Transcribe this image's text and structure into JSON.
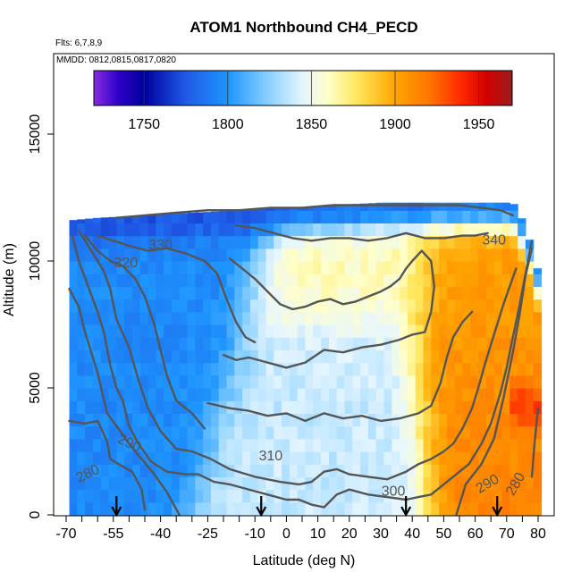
{
  "header": {
    "title": "ATOM1 Northbound CH4_PECD",
    "flights": "Flts: 6,7,8,9",
    "dates": "MMDD: 0812,0815,0817,0820"
  },
  "chart_data": {
    "type": "heatmap",
    "title": "ATOM1 Northbound CH4_PECD",
    "xlabel": "Latitude (deg N)",
    "ylabel": "Altitude (m)",
    "xlim": [
      -70,
      80
    ],
    "ylim": [
      0,
      17500
    ],
    "x_ticks": [
      -70,
      -55,
      -40,
      -25,
      -10,
      0,
      10,
      20,
      30,
      40,
      50,
      60,
      70,
      80
    ],
    "x_tick_labels": [
      "-70",
      "-55",
      "-40",
      "-25",
      "-10",
      "0",
      "10",
      "20",
      "30",
      "40",
      "50",
      "60",
      "70",
      "80"
    ],
    "y_ticks": [
      0,
      5000,
      10000,
      15000
    ],
    "y_tick_labels": [
      "0",
      "5000",
      "10000",
      "15000"
    ],
    "colorbar": {
      "range": [
        1720,
        1970
      ],
      "ticks": [
        1750,
        1800,
        1850,
        1900,
        1950
      ],
      "tick_labels": [
        "1750",
        "1800",
        "1850",
        "1900",
        "1950"
      ],
      "stops": [
        {
          "v": 1720,
          "c": "#8a2be2"
        },
        {
          "v": 1735,
          "c": "#2b00c8"
        },
        {
          "v": 1750,
          "c": "#00009c"
        },
        {
          "v": 1775,
          "c": "#1f5ae6"
        },
        {
          "v": 1800,
          "c": "#1e96ff"
        },
        {
          "v": 1825,
          "c": "#8cd2ff"
        },
        {
          "v": 1845,
          "c": "#e6f6ff"
        },
        {
          "v": 1860,
          "c": "#ffffc8"
        },
        {
          "v": 1878,
          "c": "#ffe65a"
        },
        {
          "v": 1900,
          "c": "#ffa500"
        },
        {
          "v": 1920,
          "c": "#ff7800"
        },
        {
          "v": 1940,
          "c": "#ff2800"
        },
        {
          "v": 1955,
          "c": "#d20000"
        },
        {
          "v": 1970,
          "c": "#9b1e1e"
        }
      ]
    },
    "field_model": {
      "description": "Approximate CH4 (ppb) field by latitude and altitude",
      "south_level": 1795,
      "north_surface_level": 1915,
      "north_upper_level": 1900,
      "tropical_mid_level": 1838,
      "tropical_upper_level": 1862,
      "top_level": 1770
    },
    "coverage": [
      {
        "lat": -69,
        "top": 11600
      },
      {
        "lat": -60,
        "top": 11700
      },
      {
        "lat": -45,
        "top": 11800
      },
      {
        "lat": -30,
        "top": 11900
      },
      {
        "lat": -15,
        "top": 12000
      },
      {
        "lat": 0,
        "top": 12100
      },
      {
        "lat": 15,
        "top": 12200
      },
      {
        "lat": 30,
        "top": 12300
      },
      {
        "lat": 45,
        "top": 12300
      },
      {
        "lat": 60,
        "top": 12300
      },
      {
        "lat": 72,
        "top": 12300
      },
      {
        "lat": 76,
        "top": 11400
      },
      {
        "lat": 80,
        "top": 9600
      }
    ],
    "contours": [
      {
        "level": 280,
        "label": "280",
        "points": [
          [
            -69,
            3700
          ],
          [
            -64,
            3600
          ],
          [
            -60,
            3700
          ],
          [
            -57,
            2900
          ],
          [
            -56,
            2200
          ],
          [
            -52,
            1900
          ],
          [
            -49,
            1700
          ],
          [
            -46,
            1000
          ],
          [
            -45,
            200
          ]
        ]
      },
      {
        "level": 280,
        "label": "",
        "points": [
          [
            78,
            1500
          ],
          [
            79,
            3000
          ],
          [
            80,
            4200
          ]
        ]
      },
      {
        "level": 290,
        "label": "290",
        "points": [
          [
            -69,
            8900
          ],
          [
            -66,
            8200
          ],
          [
            -64,
            7200
          ],
          [
            -62,
            6400
          ],
          [
            -60,
            5600
          ],
          [
            -57,
            4000
          ],
          [
            -54,
            3500
          ],
          [
            -50,
            2800
          ],
          [
            -46,
            2200
          ],
          [
            -42,
            1600
          ],
          [
            -38,
            900
          ],
          [
            -34,
            0
          ]
        ]
      },
      {
        "level": 290,
        "label": "",
        "points": [
          [
            54,
            0
          ],
          [
            57,
            1200
          ],
          [
            62,
            2000
          ],
          [
            66,
            3000
          ],
          [
            69,
            4600
          ],
          [
            72,
            6400
          ],
          [
            74,
            7800
          ],
          [
            76,
            9400
          ],
          [
            78,
            10500
          ]
        ]
      },
      {
        "level": 300,
        "label": "300",
        "points": [
          [
            -68,
            11000
          ],
          [
            -66,
            10000
          ],
          [
            -63,
            9000
          ],
          [
            -60,
            8000
          ],
          [
            -58,
            7200
          ],
          [
            -56,
            5900
          ],
          [
            -54,
            5000
          ],
          [
            -52,
            4500
          ],
          [
            -50,
            3500
          ],
          [
            -47,
            2800
          ],
          [
            -43,
            2100
          ],
          [
            -38,
            1700
          ],
          [
            -32,
            1600
          ],
          [
            -28,
            1600
          ],
          [
            -23,
            1300
          ],
          [
            -18,
            1200
          ],
          [
            -12,
            1000
          ],
          [
            -6,
            800
          ],
          [
            0,
            600
          ],
          [
            4,
            600
          ],
          [
            8,
            400
          ],
          [
            12,
            300
          ],
          [
            16,
            800
          ],
          [
            20,
            1000
          ],
          [
            26,
            800
          ],
          [
            32,
            700
          ],
          [
            38,
            600
          ],
          [
            42,
            700
          ],
          [
            46,
            800
          ],
          [
            50,
            1200
          ],
          [
            54,
            1600
          ],
          [
            58,
            2000
          ],
          [
            62,
            2800
          ],
          [
            65,
            3600
          ],
          [
            68,
            4800
          ],
          [
            70,
            5800
          ],
          [
            72,
            7000
          ],
          [
            74,
            8200
          ],
          [
            76,
            9500
          ],
          [
            78,
            10800
          ]
        ]
      },
      {
        "level": 310,
        "label": "310",
        "points": [
          [
            -66,
            11200
          ],
          [
            -62,
            10400
          ],
          [
            -58,
            9600
          ],
          [
            -56,
            8900
          ],
          [
            -54,
            7700
          ],
          [
            -50,
            6600
          ],
          [
            -47,
            5300
          ],
          [
            -44,
            4200
          ],
          [
            -40,
            3300
          ],
          [
            -35,
            2600
          ],
          [
            -30,
            2500
          ],
          [
            -24,
            2200
          ],
          [
            -18,
            1800
          ],
          [
            -10,
            1500
          ],
          [
            -2,
            1300
          ],
          [
            4,
            1200
          ],
          [
            8,
            1300
          ],
          [
            12,
            1700
          ],
          [
            16,
            1800
          ],
          [
            20,
            1600
          ],
          [
            26,
            1500
          ],
          [
            32,
            1400
          ],
          [
            38,
            1700
          ],
          [
            42,
            2000
          ],
          [
            46,
            2200
          ],
          [
            50,
            2500
          ],
          [
            53,
            2800
          ],
          [
            56,
            3400
          ],
          [
            59,
            4200
          ],
          [
            61,
            5000
          ],
          [
            63,
            5900
          ],
          [
            65,
            6700
          ],
          [
            67,
            7500
          ],
          [
            69,
            8300
          ],
          [
            71,
            9000
          ],
          [
            73,
            9700
          ]
        ]
      },
      {
        "level": 310,
        "label": "",
        "points": [
          [
            -25,
            4400
          ],
          [
            -18,
            4200
          ],
          [
            -12,
            4100
          ],
          [
            -6,
            3900
          ],
          [
            0,
            4000
          ],
          [
            6,
            3700
          ],
          [
            12,
            4000
          ],
          [
            18,
            3800
          ],
          [
            24,
            3900
          ],
          [
            30,
            3700
          ],
          [
            36,
            3800
          ],
          [
            42,
            4000
          ],
          [
            46,
            4300
          ],
          [
            49,
            5200
          ],
          [
            51,
            6200
          ],
          [
            53,
            7000
          ],
          [
            56,
            7600
          ],
          [
            59,
            8000
          ]
        ]
      },
      {
        "level": 320,
        "label": "320",
        "points": [
          [
            -64,
            11000
          ],
          [
            -60,
            10400
          ],
          [
            -56,
            10000
          ],
          [
            -52,
            9800
          ],
          [
            -48,
            9300
          ],
          [
            -45,
            8600
          ],
          [
            -42,
            7500
          ],
          [
            -40,
            6500
          ],
          [
            -38,
            5500
          ],
          [
            -35,
            4500
          ],
          [
            -30,
            4000
          ],
          [
            -26,
            3400
          ]
        ]
      },
      {
        "level": 320,
        "label": "",
        "points": [
          [
            -20,
            6300
          ],
          [
            -16,
            6100
          ],
          [
            -12,
            6200
          ],
          [
            -6,
            6000
          ],
          [
            0,
            5800
          ],
          [
            6,
            6000
          ],
          [
            12,
            6500
          ],
          [
            18,
            6400
          ],
          [
            24,
            6600
          ],
          [
            30,
            6700
          ],
          [
            36,
            6900
          ],
          [
            40,
            7100
          ],
          [
            44,
            7200
          ],
          [
            46,
            8000
          ],
          [
            47,
            9000
          ],
          [
            46,
            10000
          ],
          [
            43,
            10400
          ],
          [
            40,
            10000
          ],
          [
            38,
            9700
          ],
          [
            36,
            9300
          ],
          [
            33,
            9000
          ],
          [
            30,
            8800
          ],
          [
            26,
            8600
          ],
          [
            22,
            8400
          ],
          [
            18,
            8300
          ],
          [
            14,
            8500
          ],
          [
            10,
            8400
          ],
          [
            6,
            8200
          ],
          [
            2,
            8100
          ],
          [
            -2,
            8300
          ],
          [
            -6,
            8800
          ],
          [
            -10,
            9300
          ],
          [
            -14,
            9700
          ],
          [
            -18,
            10100
          ]
        ]
      },
      {
        "level": 330,
        "label": "330",
        "points": [
          [
            -60,
            11000
          ],
          [
            -55,
            10800
          ],
          [
            -50,
            10600
          ],
          [
            -44,
            10400
          ],
          [
            -38,
            10500
          ],
          [
            -32,
            10300
          ],
          [
            -26,
            10000
          ],
          [
            -22,
            9500
          ],
          [
            -19,
            8500
          ],
          [
            -16,
            7600
          ],
          [
            -13,
            7000
          ],
          [
            -10,
            6800
          ]
        ]
      },
      {
        "level": 330,
        "label": "",
        "points": [
          [
            -16,
            11400
          ],
          [
            -10,
            11300
          ],
          [
            -4,
            11100
          ],
          [
            2,
            10900
          ],
          [
            8,
            10800
          ],
          [
            14,
            10900
          ],
          [
            20,
            10900
          ],
          [
            26,
            10800
          ],
          [
            32,
            10900
          ],
          [
            38,
            11100
          ],
          [
            44,
            10900
          ],
          [
            50,
            10900
          ],
          [
            56,
            11000
          ],
          [
            60,
            11000
          ],
          [
            64,
            11100
          ]
        ]
      },
      {
        "level": 340,
        "label": "340",
        "points": [
          [
            -54,
            11700
          ],
          [
            -45,
            11800
          ],
          [
            -35,
            11900
          ],
          [
            -25,
            12000
          ],
          [
            -15,
            12000
          ],
          [
            -5,
            12100
          ],
          [
            5,
            12100
          ],
          [
            15,
            12200
          ],
          [
            25,
            12200
          ],
          [
            35,
            12200
          ],
          [
            45,
            12200
          ],
          [
            55,
            12200
          ],
          [
            62,
            12100
          ],
          [
            68,
            12000
          ],
          [
            72,
            11800
          ]
        ]
      }
    ],
    "contour_labels": [
      {
        "text": "280",
        "lat": -63,
        "alt": 1600,
        "angle": -25
      },
      {
        "text": "290",
        "lat": -50,
        "alt": 2800,
        "angle": 25
      },
      {
        "text": "310",
        "lat": -5,
        "alt": 2300,
        "angle": 0
      },
      {
        "text": "320",
        "lat": -51,
        "alt": 9900,
        "angle": 0
      },
      {
        "text": "330",
        "lat": -40,
        "alt": 10600,
        "angle": 0
      },
      {
        "text": "300",
        "lat": 34,
        "alt": 900,
        "angle": 0
      },
      {
        "text": "290",
        "lat": 64,
        "alt": 1200,
        "angle": -30
      },
      {
        "text": "280",
        "lat": 73,
        "alt": 1200,
        "angle": -60
      },
      {
        "text": "340",
        "lat": 66,
        "alt": 10800,
        "angle": 0
      }
    ],
    "flight_markers_lat": [
      -54,
      -8,
      38,
      67
    ]
  }
}
